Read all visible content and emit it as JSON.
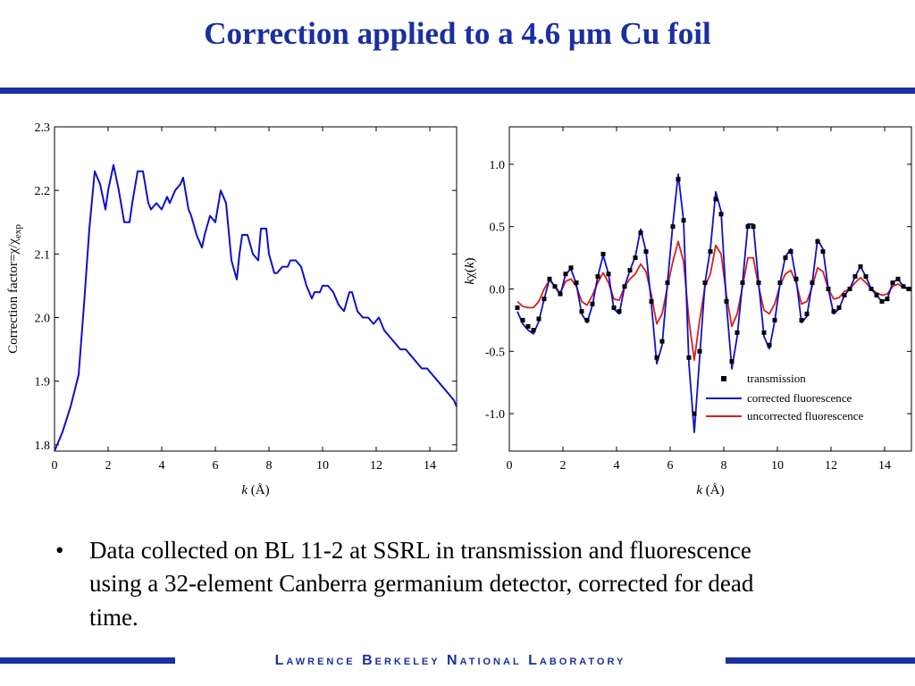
{
  "slide": {
    "title": "Correction applied to a 4.6 μm Cu foil",
    "bullets": [
      "Data collected on BL 11-2 at SSRL in transmission and fluorescence using a 32-element Canberra germanium detector, corrected for dead time."
    ],
    "bullet_symbol": "•",
    "footer": "Lawrence Berkeley National Laboratory",
    "colors": {
      "accent": "#1a2fa0",
      "blue_series": "#1010c8",
      "red_series": "#d42020",
      "black_series": "#000000"
    }
  },
  "chart_data": [
    {
      "type": "line",
      "xlabel_italic": "k",
      "xlabel_rest": " (Å)",
      "ylabel": "Correction factor=χ/χ",
      "ylabel_sub": "exp",
      "xlim": [
        0,
        15
      ],
      "ylim": [
        1.79,
        2.3
      ],
      "xticks": [
        "0",
        "2",
        "4",
        "6",
        "8",
        "10",
        "12",
        "14"
      ],
      "yticks": [
        "1.8",
        "1.9",
        "2.0",
        "2.1",
        "2.2",
        "2.3"
      ],
      "series": [
        {
          "x": [
            0.0,
            0.3,
            0.6,
            0.9,
            1.1,
            1.3,
            1.5,
            1.7,
            1.9,
            2.0,
            2.2,
            2.4,
            2.6,
            2.8,
            2.9,
            3.1,
            3.3,
            3.5,
            3.6,
            3.8,
            4.0,
            4.2,
            4.3,
            4.5,
            4.7,
            4.8,
            5.0,
            5.1,
            5.3,
            5.5,
            5.6,
            5.8,
            6.0,
            6.2,
            6.4,
            6.6,
            6.8,
            6.9,
            7.0,
            7.2,
            7.4,
            7.6,
            7.7,
            7.9,
            8.0,
            8.2,
            8.3,
            8.5,
            8.7,
            8.8,
            9.0,
            9.2,
            9.4,
            9.6,
            9.7,
            9.9,
            10.0,
            10.2,
            10.4,
            10.6,
            10.8,
            11.0,
            11.1,
            11.3,
            11.5,
            11.7,
            11.9,
            12.1,
            12.3,
            12.5,
            12.7,
            12.9,
            13.1,
            13.3,
            13.5,
            13.7,
            13.9,
            14.1,
            14.3,
            14.5,
            14.7,
            14.9,
            15.0
          ],
          "y": [
            1.79,
            1.82,
            1.86,
            1.91,
            2.02,
            2.14,
            2.23,
            2.21,
            2.17,
            2.2,
            2.24,
            2.2,
            2.15,
            2.15,
            2.18,
            2.23,
            2.23,
            2.18,
            2.17,
            2.18,
            2.17,
            2.19,
            2.18,
            2.2,
            2.21,
            2.22,
            2.17,
            2.16,
            2.13,
            2.11,
            2.13,
            2.16,
            2.15,
            2.2,
            2.18,
            2.09,
            2.06,
            2.1,
            2.13,
            2.13,
            2.1,
            2.09,
            2.14,
            2.14,
            2.1,
            2.07,
            2.07,
            2.08,
            2.08,
            2.09,
            2.09,
            2.08,
            2.05,
            2.03,
            2.04,
            2.04,
            2.05,
            2.05,
            2.04,
            2.02,
            2.01,
            2.04,
            2.04,
            2.01,
            2.0,
            2.0,
            1.99,
            2.0,
            1.98,
            1.97,
            1.96,
            1.95,
            1.95,
            1.94,
            1.93,
            1.92,
            1.92,
            1.91,
            1.9,
            1.89,
            1.88,
            1.87,
            1.86
          ]
        }
      ]
    },
    {
      "type": "line",
      "xlabel_italic": "k",
      "xlabel_rest": " (Å)",
      "ylabel_italic": "k",
      "ylabel_mid": "χ(",
      "ylabel_italic2": "k",
      "ylabel_end": ")",
      "xlim": [
        0,
        15
      ],
      "ylim": [
        -1.3,
        1.3
      ],
      "xticks": [
        "0",
        "2",
        "4",
        "6",
        "8",
        "10",
        "12",
        "14"
      ],
      "yticks": [
        "1.0",
        "0.5",
        "0.0",
        "-0.5",
        "-1.0"
      ],
      "legend_position": "bottom-right",
      "series": [
        {
          "name": "transmission",
          "marker": "square",
          "x": [
            0.3,
            0.5,
            0.7,
            0.9,
            1.1,
            1.3,
            1.5,
            1.7,
            1.9,
            2.1,
            2.3,
            2.5,
            2.7,
            2.9,
            3.1,
            3.3,
            3.5,
            3.7,
            3.9,
            4.1,
            4.3,
            4.5,
            4.7,
            4.9,
            5.1,
            5.3,
            5.5,
            5.7,
            5.9,
            6.1,
            6.3,
            6.5,
            6.7,
            6.9,
            7.1,
            7.3,
            7.5,
            7.7,
            7.9,
            8.1,
            8.3,
            8.5,
            8.7,
            8.9,
            9.1,
            9.3,
            9.5,
            9.7,
            9.9,
            10.1,
            10.3,
            10.5,
            10.7,
            10.9,
            11.1,
            11.3,
            11.5,
            11.7,
            11.9,
            12.1,
            12.3,
            12.5,
            12.7,
            12.9,
            13.1,
            13.3,
            13.5,
            13.7,
            13.9,
            14.1,
            14.3,
            14.5,
            14.7,
            14.9
          ],
          "y": [
            -0.15,
            -0.25,
            -0.3,
            -0.33,
            -0.24,
            -0.08,
            0.08,
            0.02,
            -0.04,
            0.12,
            0.17,
            0.05,
            -0.18,
            -0.25,
            -0.12,
            0.1,
            0.28,
            0.12,
            -0.15,
            -0.18,
            0.02,
            0.15,
            0.25,
            0.45,
            0.3,
            -0.1,
            -0.55,
            -0.42,
            0.05,
            0.5,
            0.88,
            0.55,
            -0.55,
            -1.0,
            -0.5,
            0.05,
            0.3,
            0.72,
            0.6,
            -0.1,
            -0.58,
            -0.35,
            0.05,
            0.5,
            0.5,
            0.05,
            -0.35,
            -0.45,
            -0.25,
            0.05,
            0.25,
            0.3,
            0.08,
            -0.25,
            -0.2,
            0.05,
            0.38,
            0.3,
            0.0,
            -0.18,
            -0.15,
            -0.05,
            0.0,
            0.1,
            0.18,
            0.1,
            0.0,
            -0.05,
            -0.1,
            -0.08,
            0.05,
            0.08,
            0.02,
            0.0
          ]
        },
        {
          "name": "corrected fluorescence",
          "x": [
            0.3,
            0.5,
            0.7,
            0.9,
            1.1,
            1.3,
            1.5,
            1.7,
            1.9,
            2.1,
            2.3,
            2.5,
            2.7,
            2.9,
            3.1,
            3.3,
            3.5,
            3.7,
            3.9,
            4.1,
            4.3,
            4.5,
            4.7,
            4.9,
            5.1,
            5.3,
            5.5,
            5.7,
            5.9,
            6.1,
            6.3,
            6.5,
            6.7,
            6.9,
            7.1,
            7.3,
            7.5,
            7.7,
            7.9,
            8.1,
            8.3,
            8.5,
            8.7,
            8.9,
            9.1,
            9.3,
            9.5,
            9.7,
            9.9,
            10.1,
            10.3,
            10.5,
            10.7,
            10.9,
            11.1,
            11.3,
            11.5,
            11.7,
            11.9,
            12.1,
            12.3,
            12.5,
            12.7,
            12.9,
            13.1,
            13.3,
            13.5,
            13.7,
            13.9,
            14.1,
            14.3,
            14.5,
            14.7,
            14.9
          ],
          "y": [
            -0.18,
            -0.28,
            -0.33,
            -0.36,
            -0.26,
            -0.08,
            0.08,
            0.02,
            -0.05,
            0.12,
            0.16,
            0.04,
            -0.2,
            -0.27,
            -0.13,
            0.1,
            0.27,
            0.12,
            -0.16,
            -0.2,
            0.02,
            0.15,
            0.26,
            0.48,
            0.3,
            -0.12,
            -0.6,
            -0.45,
            0.05,
            0.52,
            0.92,
            0.55,
            -0.6,
            -1.15,
            -0.55,
            0.05,
            0.32,
            0.78,
            0.62,
            -0.12,
            -0.64,
            -0.38,
            0.05,
            0.52,
            0.52,
            0.05,
            -0.38,
            -0.48,
            -0.26,
            0.05,
            0.26,
            0.32,
            0.08,
            -0.27,
            -0.22,
            0.05,
            0.4,
            0.32,
            0.0,
            -0.2,
            -0.16,
            -0.05,
            0.0,
            0.1,
            0.18,
            0.1,
            0.0,
            -0.05,
            -0.1,
            -0.08,
            0.05,
            0.08,
            0.02,
            0.0
          ]
        },
        {
          "name": "uncorrected fluorescence",
          "x": [
            0.3,
            0.5,
            0.7,
            0.9,
            1.1,
            1.3,
            1.5,
            1.7,
            1.9,
            2.1,
            2.3,
            2.5,
            2.7,
            2.9,
            3.1,
            3.3,
            3.5,
            3.7,
            3.9,
            4.1,
            4.3,
            4.5,
            4.7,
            4.9,
            5.1,
            5.3,
            5.5,
            5.7,
            5.9,
            6.1,
            6.3,
            6.5,
            6.7,
            6.9,
            7.1,
            7.3,
            7.5,
            7.7,
            7.9,
            8.1,
            8.3,
            8.5,
            8.7,
            8.9,
            9.1,
            9.3,
            9.5,
            9.7,
            9.9,
            10.1,
            10.3,
            10.5,
            10.7,
            10.9,
            11.1,
            11.3,
            11.5,
            11.7,
            11.9,
            12.1,
            12.3,
            12.5,
            12.7,
            12.9,
            13.1,
            13.3,
            13.5,
            13.7,
            13.9,
            14.1,
            14.3,
            14.5,
            14.7,
            14.9
          ],
          "y": [
            -0.1,
            -0.14,
            -0.15,
            -0.15,
            -0.1,
            0.0,
            0.07,
            0.02,
            -0.03,
            0.06,
            0.08,
            0.02,
            -0.1,
            -0.13,
            -0.05,
            0.05,
            0.13,
            0.05,
            -0.08,
            -0.09,
            0.02,
            0.08,
            0.12,
            0.2,
            0.14,
            -0.05,
            -0.28,
            -0.2,
            0.02,
            0.22,
            0.38,
            0.22,
            -0.25,
            -0.57,
            -0.25,
            0.02,
            0.12,
            0.35,
            0.28,
            -0.05,
            -0.3,
            -0.2,
            0.02,
            0.25,
            0.25,
            0.02,
            -0.17,
            -0.2,
            -0.12,
            0.03,
            0.12,
            0.15,
            0.05,
            -0.12,
            -0.1,
            0.02,
            0.17,
            0.14,
            0.0,
            -0.08,
            -0.07,
            -0.02,
            0.0,
            0.05,
            0.09,
            0.05,
            0.0,
            -0.03,
            -0.05,
            -0.04,
            0.02,
            0.04,
            0.01,
            0.0
          ]
        }
      ]
    }
  ]
}
